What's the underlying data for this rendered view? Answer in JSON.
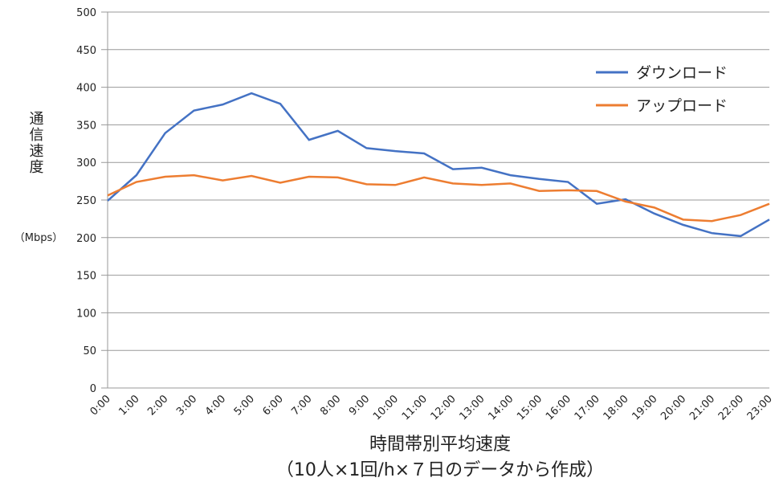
{
  "chart_data": {
    "type": "line",
    "y_label": "通信速度",
    "y_unit": "（Mbps）",
    "x_label": "時間帯別平均速度",
    "note": "（10人×1回/h×７日のデータから作成）",
    "categories": [
      "0:00",
      "1:00",
      "2:00",
      "3:00",
      "4:00",
      "5:00",
      "6:00",
      "7:00",
      "8:00",
      "9:00",
      "10:00",
      "11:00",
      "12:00",
      "13:00",
      "14:00",
      "15:00",
      "16:00",
      "17:00",
      "18:00",
      "19:00",
      "20:00",
      "21:00",
      "22:00",
      "23:00"
    ],
    "series": [
      {
        "name": "ダウンロード",
        "color": "#4472c4",
        "values": [
          249,
          283,
          339,
          369,
          377,
          392,
          378,
          330,
          342,
          319,
          315,
          312,
          291,
          293,
          283,
          278,
          274,
          245,
          251,
          232,
          217,
          206,
          202,
          224
        ]
      },
      {
        "name": "アップロード",
        "color": "#ed7d31",
        "values": [
          256,
          274,
          281,
          283,
          276,
          282,
          273,
          281,
          280,
          271,
          270,
          280,
          272,
          270,
          272,
          262,
          263,
          262,
          248,
          240,
          224,
          222,
          230,
          245
        ]
      }
    ],
    "ylim": [
      0,
      500
    ],
    "yticks": [
      0,
      50,
      100,
      150,
      200,
      250,
      300,
      350,
      400,
      450,
      500
    ],
    "grid": true,
    "legend": "upper right"
  }
}
